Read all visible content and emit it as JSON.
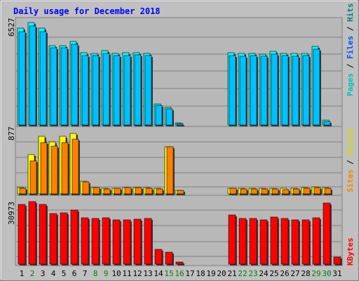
{
  "chart_data": [
    {
      "type": "bar",
      "title": "Daily usage for December 2018",
      "categories": [
        "1",
        "2",
        "3",
        "4",
        "5",
        "6",
        "7",
        "8",
        "9",
        "10",
        "11",
        "12",
        "13",
        "14",
        "15",
        "16",
        "17",
        "18",
        "19",
        "20",
        "21",
        "22",
        "23",
        "24",
        "25",
        "26",
        "27",
        "28",
        "29",
        "30",
        "31"
      ],
      "weekend_days": [
        "2",
        "8",
        "9",
        "15",
        "16",
        "22",
        "23",
        "29",
        "30"
      ],
      "panels": [
        {
          "name": "hits_files_pages",
          "ymax_label": "6527",
          "ylim": [
            0,
            6527
          ],
          "legend": [
            "Pages",
            "Files",
            "Hits"
          ],
          "series": [
            {
              "name": "Hits",
              "color": "#00ffff",
              "values": [
                5950,
                6300,
                5950,
                4900,
                4900,
                5150,
                4460,
                4420,
                4590,
                4420,
                4470,
                4470,
                4430,
                1300,
                1100,
                120,
                0,
                0,
                0,
                0,
                4460,
                4400,
                4420,
                4380,
                4530,
                4420,
                4410,
                4420,
                4830,
                300,
                0
              ]
            },
            {
              "name": "Files",
              "color": "#00c0ff",
              "values": [
                5750,
                6100,
                5750,
                4750,
                4750,
                4970,
                4300,
                4260,
                4420,
                4260,
                4300,
                4310,
                4280,
                1200,
                980,
                90,
                0,
                0,
                0,
                0,
                4300,
                4240,
                4260,
                4220,
                4370,
                4260,
                4250,
                4260,
                4660,
                230,
                0
              ]
            },
            {
              "name": "Pages",
              "color": "#008080",
              "values": [
                0,
                0,
                0,
                0,
                0,
                0,
                0,
                0,
                0,
                0,
                0,
                0,
                0,
                0,
                0,
                0,
                0,
                0,
                0,
                0,
                0,
                0,
                0,
                0,
                0,
                0,
                0,
                0,
                0,
                0,
                0
              ]
            }
          ]
        },
        {
          "name": "visits_sites",
          "ymax_label": "877",
          "ylim": [
            0,
            877
          ],
          "legend": [
            "Sites",
            "Visits"
          ],
          "series": [
            {
              "name": "Visits",
              "color": "#ffff00",
              "values": [
                90,
                530,
                780,
                710,
                780,
                820,
                170,
                90,
                80,
                80,
                90,
                90,
                90,
                80,
                640,
                50,
                0,
                0,
                0,
                0,
                80,
                80,
                80,
                75,
                80,
                75,
                75,
                85,
                95,
                85,
                0
              ]
            },
            {
              "name": "Sites",
              "color": "#ff8000",
              "values": [
                80,
                450,
                700,
                650,
                700,
                745,
                160,
                85,
                70,
                75,
                85,
                85,
                80,
                70,
                635,
                45,
                0,
                0,
                0,
                0,
                75,
                70,
                70,
                70,
                70,
                60,
                65,
                80,
                90,
                75,
                0
              ]
            }
          ]
        },
        {
          "name": "kbytes",
          "ymax_label": "30973",
          "ylim": [
            0,
            30973
          ],
          "legend": [
            "KBytes"
          ],
          "series": [
            {
              "name": "KBytes",
              "color": "#ff0000",
              "values": [
                28100,
                29300,
                27900,
                23600,
                24200,
                25400,
                21600,
                21300,
                21900,
                20600,
                20900,
                21200,
                21300,
                6900,
                5600,
                1000,
                0,
                0,
                0,
                0,
                23100,
                21300,
                21300,
                20600,
                22100,
                21300,
                20600,
                20600,
                21600,
                28600,
                3300
              ]
            }
          ]
        }
      ]
    }
  ]
}
